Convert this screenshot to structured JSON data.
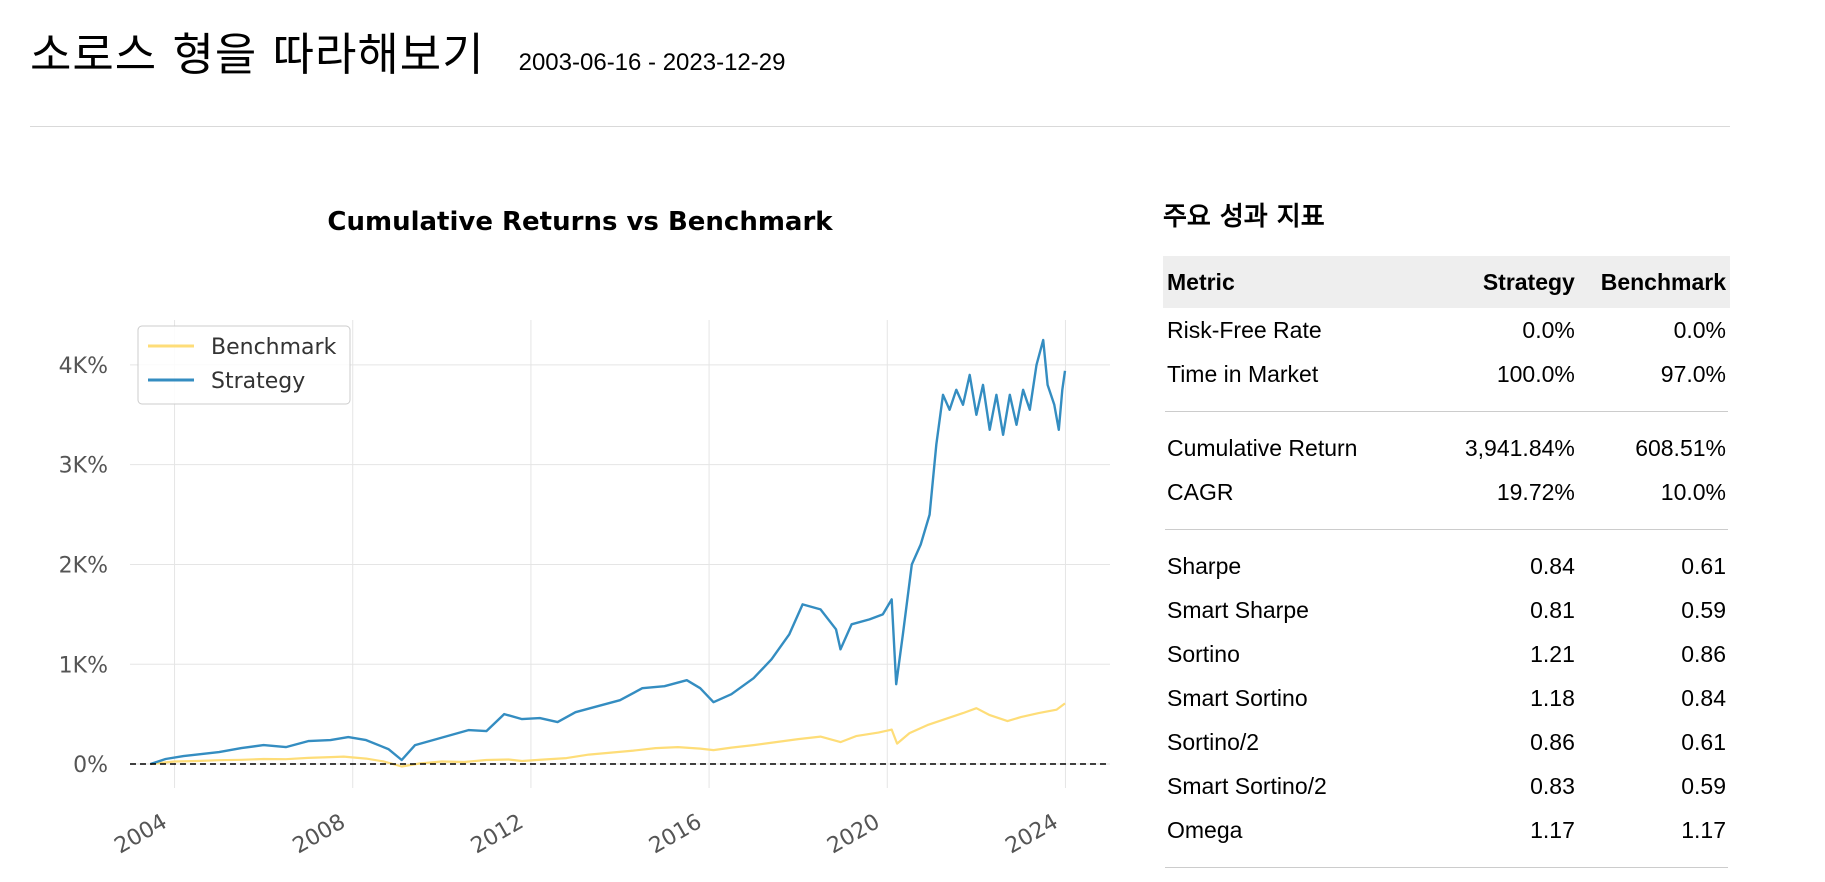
{
  "page": {
    "title": "소로스 형을 따라해보기",
    "date_range": "2003-06-16 - 2023-12-29"
  },
  "chart_data": {
    "type": "line",
    "title": "Cumulative Returns vs Benchmark",
    "xlabel": "",
    "ylabel": "",
    "x_ticks": [
      "2004",
      "2008",
      "2012",
      "2016",
      "2020",
      "2024"
    ],
    "y_ticks": [
      "0%",
      "1K%",
      "2K%",
      "3K%",
      "4K%"
    ],
    "xlim": [
      2003.0,
      2025.0
    ],
    "ylim": [
      -180,
      4450
    ],
    "grid": true,
    "legend_position": "top-left",
    "baseline": 0,
    "series": [
      {
        "name": "Benchmark",
        "color": "#fedd78",
        "points": [
          [
            2003.46,
            0
          ],
          [
            2004.0,
            25
          ],
          [
            2004.5,
            30
          ],
          [
            2005.0,
            38
          ],
          [
            2005.5,
            42
          ],
          [
            2006.0,
            50
          ],
          [
            2006.5,
            48
          ],
          [
            2007.0,
            62
          ],
          [
            2007.5,
            70
          ],
          [
            2007.8,
            75
          ],
          [
            2008.3,
            55
          ],
          [
            2008.7,
            25
          ],
          [
            2009.1,
            -25
          ],
          [
            2009.5,
            5
          ],
          [
            2010.0,
            25
          ],
          [
            2010.5,
            20
          ],
          [
            2011.0,
            40
          ],
          [
            2011.5,
            45
          ],
          [
            2011.8,
            30
          ],
          [
            2012.3,
            45
          ],
          [
            2012.8,
            60
          ],
          [
            2013.3,
            95
          ],
          [
            2013.8,
            115
          ],
          [
            2014.3,
            135
          ],
          [
            2014.8,
            160
          ],
          [
            2015.3,
            170
          ],
          [
            2015.8,
            155
          ],
          [
            2016.1,
            140
          ],
          [
            2016.5,
            165
          ],
          [
            2017.0,
            190
          ],
          [
            2017.5,
            220
          ],
          [
            2018.0,
            250
          ],
          [
            2018.5,
            275
          ],
          [
            2018.95,
            220
          ],
          [
            2019.3,
            280
          ],
          [
            2019.8,
            315
          ],
          [
            2020.1,
            345
          ],
          [
            2020.22,
            205
          ],
          [
            2020.5,
            310
          ],
          [
            2020.9,
            390
          ],
          [
            2021.3,
            450
          ],
          [
            2021.7,
            510
          ],
          [
            2022.0,
            560
          ],
          [
            2022.3,
            490
          ],
          [
            2022.7,
            430
          ],
          [
            2023.0,
            470
          ],
          [
            2023.4,
            510
          ],
          [
            2023.8,
            545
          ],
          [
            2023.99,
            608
          ]
        ]
      },
      {
        "name": "Strategy",
        "color": "#348dc1",
        "points": [
          [
            2003.46,
            0
          ],
          [
            2003.8,
            50
          ],
          [
            2004.2,
            80
          ],
          [
            2004.6,
            100
          ],
          [
            2005.0,
            120
          ],
          [
            2005.5,
            160
          ],
          [
            2006.0,
            190
          ],
          [
            2006.5,
            170
          ],
          [
            2007.0,
            230
          ],
          [
            2007.5,
            240
          ],
          [
            2007.9,
            270
          ],
          [
            2008.3,
            240
          ],
          [
            2008.8,
            150
          ],
          [
            2009.1,
            40
          ],
          [
            2009.4,
            190
          ],
          [
            2009.8,
            240
          ],
          [
            2010.2,
            290
          ],
          [
            2010.6,
            340
          ],
          [
            2011.0,
            330
          ],
          [
            2011.4,
            500
          ],
          [
            2011.8,
            450
          ],
          [
            2012.2,
            460
          ],
          [
            2012.6,
            420
          ],
          [
            2013.0,
            520
          ],
          [
            2013.5,
            580
          ],
          [
            2014.0,
            640
          ],
          [
            2014.5,
            760
          ],
          [
            2015.0,
            780
          ],
          [
            2015.5,
            840
          ],
          [
            2015.8,
            760
          ],
          [
            2016.1,
            620
          ],
          [
            2016.5,
            700
          ],
          [
            2017.0,
            860
          ],
          [
            2017.4,
            1050
          ],
          [
            2017.8,
            1300
          ],
          [
            2018.1,
            1600
          ],
          [
            2018.5,
            1550
          ],
          [
            2018.85,
            1350
          ],
          [
            2018.95,
            1150
          ],
          [
            2019.2,
            1400
          ],
          [
            2019.6,
            1450
          ],
          [
            2019.9,
            1500
          ],
          [
            2020.1,
            1650
          ],
          [
            2020.2,
            800
          ],
          [
            2020.35,
            1300
          ],
          [
            2020.55,
            2000
          ],
          [
            2020.75,
            2200
          ],
          [
            2020.95,
            2500
          ],
          [
            2021.1,
            3200
          ],
          [
            2021.25,
            3700
          ],
          [
            2021.4,
            3550
          ],
          [
            2021.55,
            3750
          ],
          [
            2021.7,
            3600
          ],
          [
            2021.85,
            3900
          ],
          [
            2022.0,
            3500
          ],
          [
            2022.15,
            3800
          ],
          [
            2022.3,
            3350
          ],
          [
            2022.45,
            3700
          ],
          [
            2022.6,
            3300
          ],
          [
            2022.75,
            3700
          ],
          [
            2022.9,
            3400
          ],
          [
            2023.05,
            3750
          ],
          [
            2023.2,
            3550
          ],
          [
            2023.35,
            4000
          ],
          [
            2023.5,
            4250
          ],
          [
            2023.6,
            3800
          ],
          [
            2023.75,
            3600
          ],
          [
            2023.85,
            3350
          ],
          [
            2023.93,
            3750
          ],
          [
            2023.99,
            3941
          ]
        ]
      }
    ]
  },
  "metrics": {
    "title": "주요 성과 지표",
    "headers": [
      "Metric",
      "Strategy",
      "Benchmark"
    ],
    "groups": [
      [
        [
          "Risk-Free Rate",
          "0.0%",
          "0.0%"
        ],
        [
          "Time in Market",
          "100.0%",
          "97.0%"
        ]
      ],
      [
        [
          "Cumulative Return",
          "3,941.84%",
          "608.51%"
        ],
        [
          "CAGR",
          "19.72%",
          "10.0%"
        ]
      ],
      [
        [
          "Sharpe",
          "0.84",
          "0.61"
        ],
        [
          "Smart Sharpe",
          "0.81",
          "0.59"
        ],
        [
          "Sortino",
          "1.21",
          "0.86"
        ],
        [
          "Smart Sortino",
          "1.18",
          "0.84"
        ],
        [
          "Sortino/2",
          "0.86",
          "0.61"
        ],
        [
          "Smart Sortino/2",
          "0.83",
          "0.59"
        ],
        [
          "Omega",
          "1.17",
          "1.17"
        ]
      ]
    ]
  }
}
